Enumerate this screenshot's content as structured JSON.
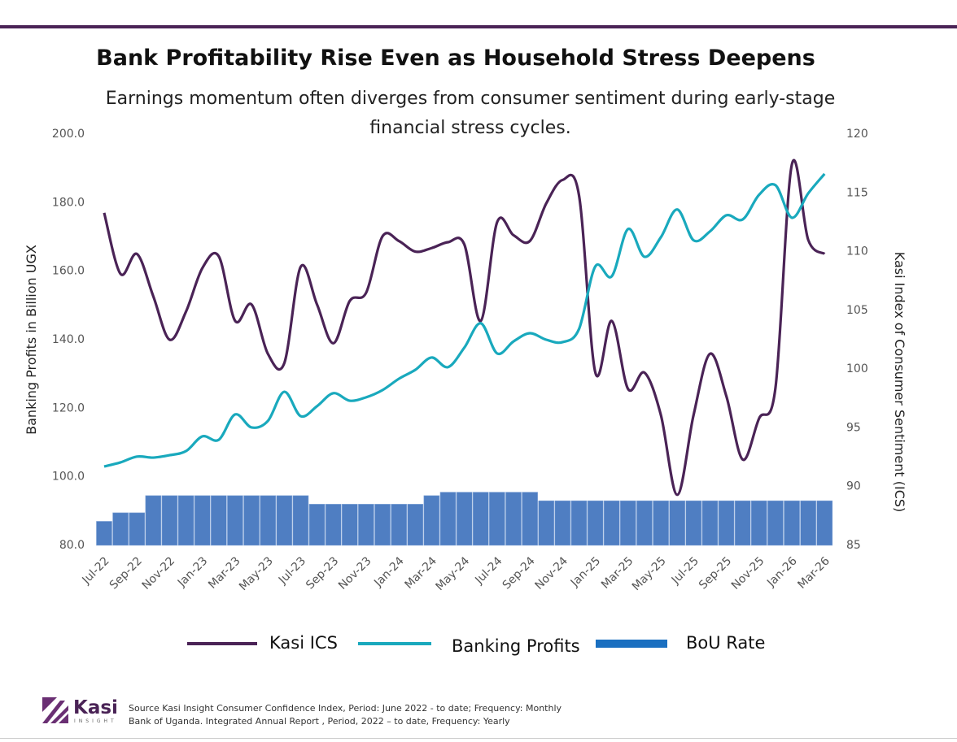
{
  "chart_data": {
    "type": "line",
    "title": "Bank Profitability Rise Even as Household Stress Deepens",
    "subtitle": "Earnings momentum often diverges from consumer sentiment during early-stage financial stress cycles.",
    "y_label": "Banking Profits in Billion  UGX",
    "y2_label": "Kasi Index of Consumer Sentiment (ICS)",
    "categories": [
      "Jul-22",
      null,
      "Sep-22",
      null,
      "Nov-22",
      null,
      "Jan-23",
      null,
      "Mar-23",
      null,
      "May-23",
      null,
      "Jul-23",
      null,
      "Sep-23",
      null,
      "Nov-23",
      null,
      "Jan-24",
      null,
      "Mar-24",
      null,
      "May-24",
      null,
      "Jul-24",
      null,
      "Sep-24",
      null,
      "Nov-24",
      null,
      "Jan-25",
      null,
      "Mar-25",
      null,
      "May-25",
      null,
      "Jul-25",
      null,
      "Sep-25",
      null,
      "Nov-25",
      null,
      "Jan-26",
      null,
      "Mar-26"
    ],
    "series": [
      {
        "name": "Kasi ICS",
        "type": "line",
        "axis": "y2",
        "color": "#4a2356",
        "values": [
          113.3,
          108.1,
          109.8,
          106.2,
          102.5,
          104.9,
          108.6,
          109.6,
          104.1,
          105.5,
          101.3,
          100.5,
          108.7,
          105.5,
          102.2,
          105.8,
          106.5,
          111.3,
          110.9,
          110.0,
          110.3,
          110.8,
          110.6,
          104.1,
          112.5,
          111.4,
          110.9,
          114.1,
          116.1,
          114.8,
          99.7,
          104.1,
          98.3,
          99.7,
          96.1,
          89.3,
          96.1,
          101.3,
          97.7,
          92.3,
          95.8,
          98.4,
          117.4,
          111.0,
          109.8
        ]
      },
      {
        "name": "Banking Profits",
        "type": "line",
        "color": "#19a9bd",
        "values": [
          103.0,
          104.2,
          105.9,
          105.6,
          106.3,
          107.5,
          111.8,
          110.8,
          118.2,
          114.4,
          116.3,
          124.8,
          117.7,
          120.6,
          124.4,
          122.2,
          123.2,
          125.3,
          128.6,
          131.2,
          134.8,
          132.0,
          137.7,
          144.8,
          136.0,
          139.5,
          141.9,
          140.0,
          139.3,
          143.1,
          161.4,
          158.5,
          172.3,
          164.2,
          169.9,
          178.0,
          169.0,
          171.6,
          176.3,
          175.1,
          182.3,
          185.1,
          175.6,
          182.7,
          188.4
        ]
      },
      {
        "name": "BoU Rate",
        "type": "bar",
        "color": "#4f7ec2",
        "legend_color": "#1a6fc0",
        "values": [
          87,
          89.5,
          89.5,
          94.5,
          94.5,
          94.5,
          94.5,
          94.5,
          94.5,
          94.5,
          94.5,
          94.5,
          94.5,
          92,
          92,
          92,
          92,
          92,
          92,
          92,
          94.5,
          95.5,
          95.5,
          95.5,
          95.5,
          95.5,
          95.5,
          93,
          93,
          93,
          93,
          93,
          93,
          93,
          93,
          93,
          93,
          93,
          93,
          93,
          93,
          93,
          93,
          93,
          93
        ]
      }
    ],
    "ylim": [
      80,
      200
    ],
    "yticks": [
      {
        "value": 80,
        "label": "80.0"
      },
      {
        "value": 100,
        "label": "100.0"
      },
      {
        "value": 120,
        "label": "120.0"
      },
      {
        "value": 140,
        "label": "140.0"
      },
      {
        "value": 160,
        "label": "160.0"
      },
      {
        "value": 180,
        "label": "180.0"
      },
      {
        "value": 200,
        "label": "200.0"
      }
    ],
    "y2lim": [
      85,
      120
    ],
    "y2ticks": [
      85,
      90,
      95,
      100,
      105,
      110,
      115,
      120
    ],
    "legend": "bottom"
  },
  "footer": {
    "logo": "Kasi",
    "logo_sub": "INSIGHT",
    "sources": [
      "Source Kasi Insight Consumer Confidence Index, Period: June 2022 - to date; Frequency: Monthly",
      "Bank of Uganda. Integrated Annual Report , Period, 2022 – to date, Frequency: Yearly"
    ]
  }
}
